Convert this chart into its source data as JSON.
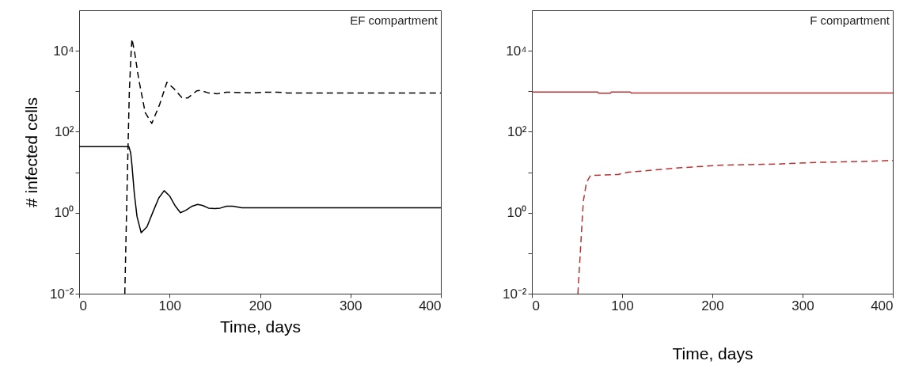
{
  "chart_data": [
    {
      "type": "line",
      "xlabel": "Time, days",
      "ylabel": "# infected cells",
      "annotations": [
        "EF compartment"
      ],
      "log": true,
      "grid": false,
      "marker": "none",
      "xlim": [
        0,
        400
      ],
      "xticks": [
        0,
        100,
        200,
        300,
        400
      ],
      "ylim": [
        0.01,
        100000
      ],
      "yticks": [
        {
          "value": 0.01,
          "label": "10⁻²"
        },
        {
          "value": 0.1,
          "label": null
        },
        {
          "value": 1,
          "label": "10⁰"
        },
        {
          "value": 10,
          "label": null
        },
        {
          "value": 100,
          "label": "10²"
        },
        {
          "value": 1000,
          "label": null
        },
        {
          "value": 10000,
          "label": "10⁴"
        }
      ],
      "series": [
        {
          "color": "#000000",
          "line_style": "solid",
          "x": [
            0,
            55,
            57,
            58.4,
            61,
            64,
            68.6,
            75,
            82,
            88,
            94,
            100,
            106,
            112,
            118,
            125,
            131,
            137,
            143,
            150,
            156,
            163,
            170,
            180,
            400
          ],
          "values": [
            43,
            43,
            30,
            15,
            3,
            0.8,
            0.32,
            0.45,
            1.1,
            2.3,
            3.5,
            2.6,
            1.5,
            1.0,
            1.15,
            1.45,
            1.6,
            1.5,
            1.3,
            1.26,
            1.3,
            1.45,
            1.45,
            1.32,
            1.32
          ]
        },
        {
          "color": "#000000",
          "line_style": "dashed",
          "x": [
            50.5,
            53,
            55.5,
            57.5,
            58.4,
            61.3,
            65.7,
            73,
            80.3,
            89,
            97,
            105,
            114,
            120,
            130,
            134,
            143,
            153,
            163,
            193,
            204,
            219,
            230,
            400
          ],
          "values": [
            0.01,
            3.9,
            1000,
            9300,
            19500,
            9300,
            2100,
            300,
            160,
            470,
            1660,
            1150,
            680,
            680,
            1020,
            1050,
            910,
            870,
            950,
            910,
            950,
            950,
            910,
            910
          ]
        }
      ]
    },
    {
      "type": "line",
      "xlabel": "Time, days",
      "annotations": [
        "F compartment"
      ],
      "log": true,
      "grid": false,
      "marker": "none",
      "xlim": [
        0,
        400
      ],
      "xticks": [
        0,
        100,
        200,
        300,
        400
      ],
      "ylim": [
        0.01,
        100000
      ],
      "yticks": [
        {
          "value": 0.01,
          "label": "10⁻²"
        },
        {
          "value": 0.1,
          "label": null
        },
        {
          "value": 1,
          "label": "10⁰"
        },
        {
          "value": 10,
          "label": null
        },
        {
          "value": 100,
          "label": "10²"
        },
        {
          "value": 1000,
          "label": null
        },
        {
          "value": 10000,
          "label": "10⁴"
        }
      ],
      "series": [
        {
          "color": "#b83232",
          "line_style": "solid",
          "x": [
            0,
            73,
            74,
            87,
            88,
            109,
            110,
            400
          ],
          "values": [
            955,
            955,
            890,
            890,
            955,
            955,
            910,
            910
          ]
        },
        {
          "color": "#b83232",
          "line_style": "dashed",
          "x": [
            51,
            57,
            60.5,
            65,
            95.6,
            107,
            166,
            212.6,
            274,
            318,
            376,
            397,
            400
          ],
          "values": [
            0.01,
            1.9,
            5.6,
            8.3,
            8.8,
            10,
            13,
            15,
            16,
            17.5,
            18.7,
            19.5,
            19.5
          ]
        }
      ]
    }
  ]
}
